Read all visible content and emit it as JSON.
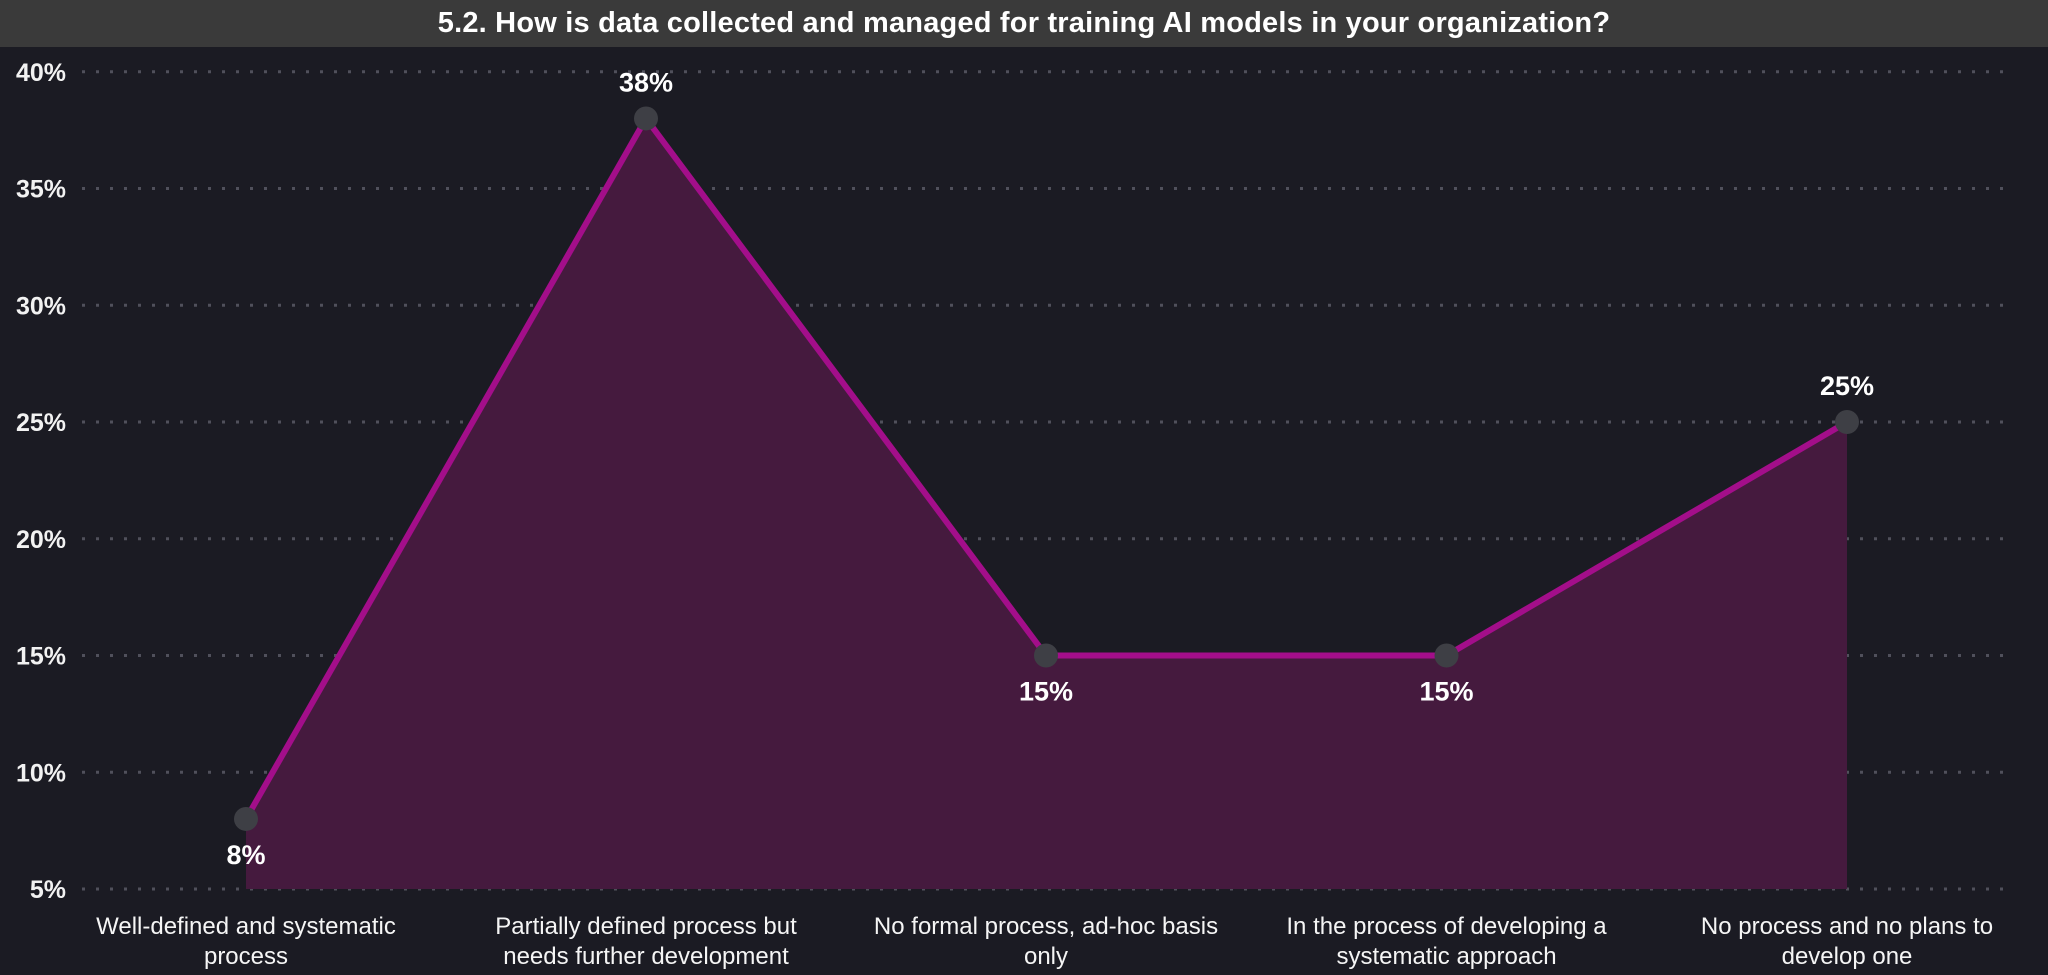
{
  "header": {
    "title": "5.2. How is data collected and managed for training AI models in your organization?"
  },
  "colors": {
    "header_bg": "#3a3a3a",
    "chart_bg": "#1b1b23",
    "line": "#a30e8a",
    "area_fill": "#451a3e",
    "marker": "#3e3f45",
    "grid": "#50505b",
    "text": "#f5f5f5"
  },
  "chart_data": {
    "type": "area",
    "title": "5.2. How is data collected and managed for training AI models in your organization?",
    "categories": [
      "Well-defined and systematic\nprocess",
      "Partially defined process but\nneeds further development",
      "No formal process, ad-hoc basis\nonly",
      "In the process of developing a\nsystematic approach",
      "No process and no plans to\ndevelop one"
    ],
    "values": [
      8,
      38,
      15,
      15,
      25
    ],
    "data_labels": [
      "8%",
      "38%",
      "15%",
      "15%",
      "25%"
    ],
    "data_label_positions": [
      "below",
      "above",
      "below",
      "below",
      "above"
    ],
    "y_ticks": [
      5,
      10,
      15,
      20,
      25,
      30,
      35,
      40
    ],
    "y_tick_labels": [
      "5%",
      "10%",
      "15%",
      "20%",
      "25%",
      "30%",
      "35%",
      "40%"
    ],
    "ylim": [
      5,
      40
    ],
    "xlabel": "",
    "ylabel": "",
    "grid": "horizontal-dotted",
    "legend_position": "none"
  }
}
